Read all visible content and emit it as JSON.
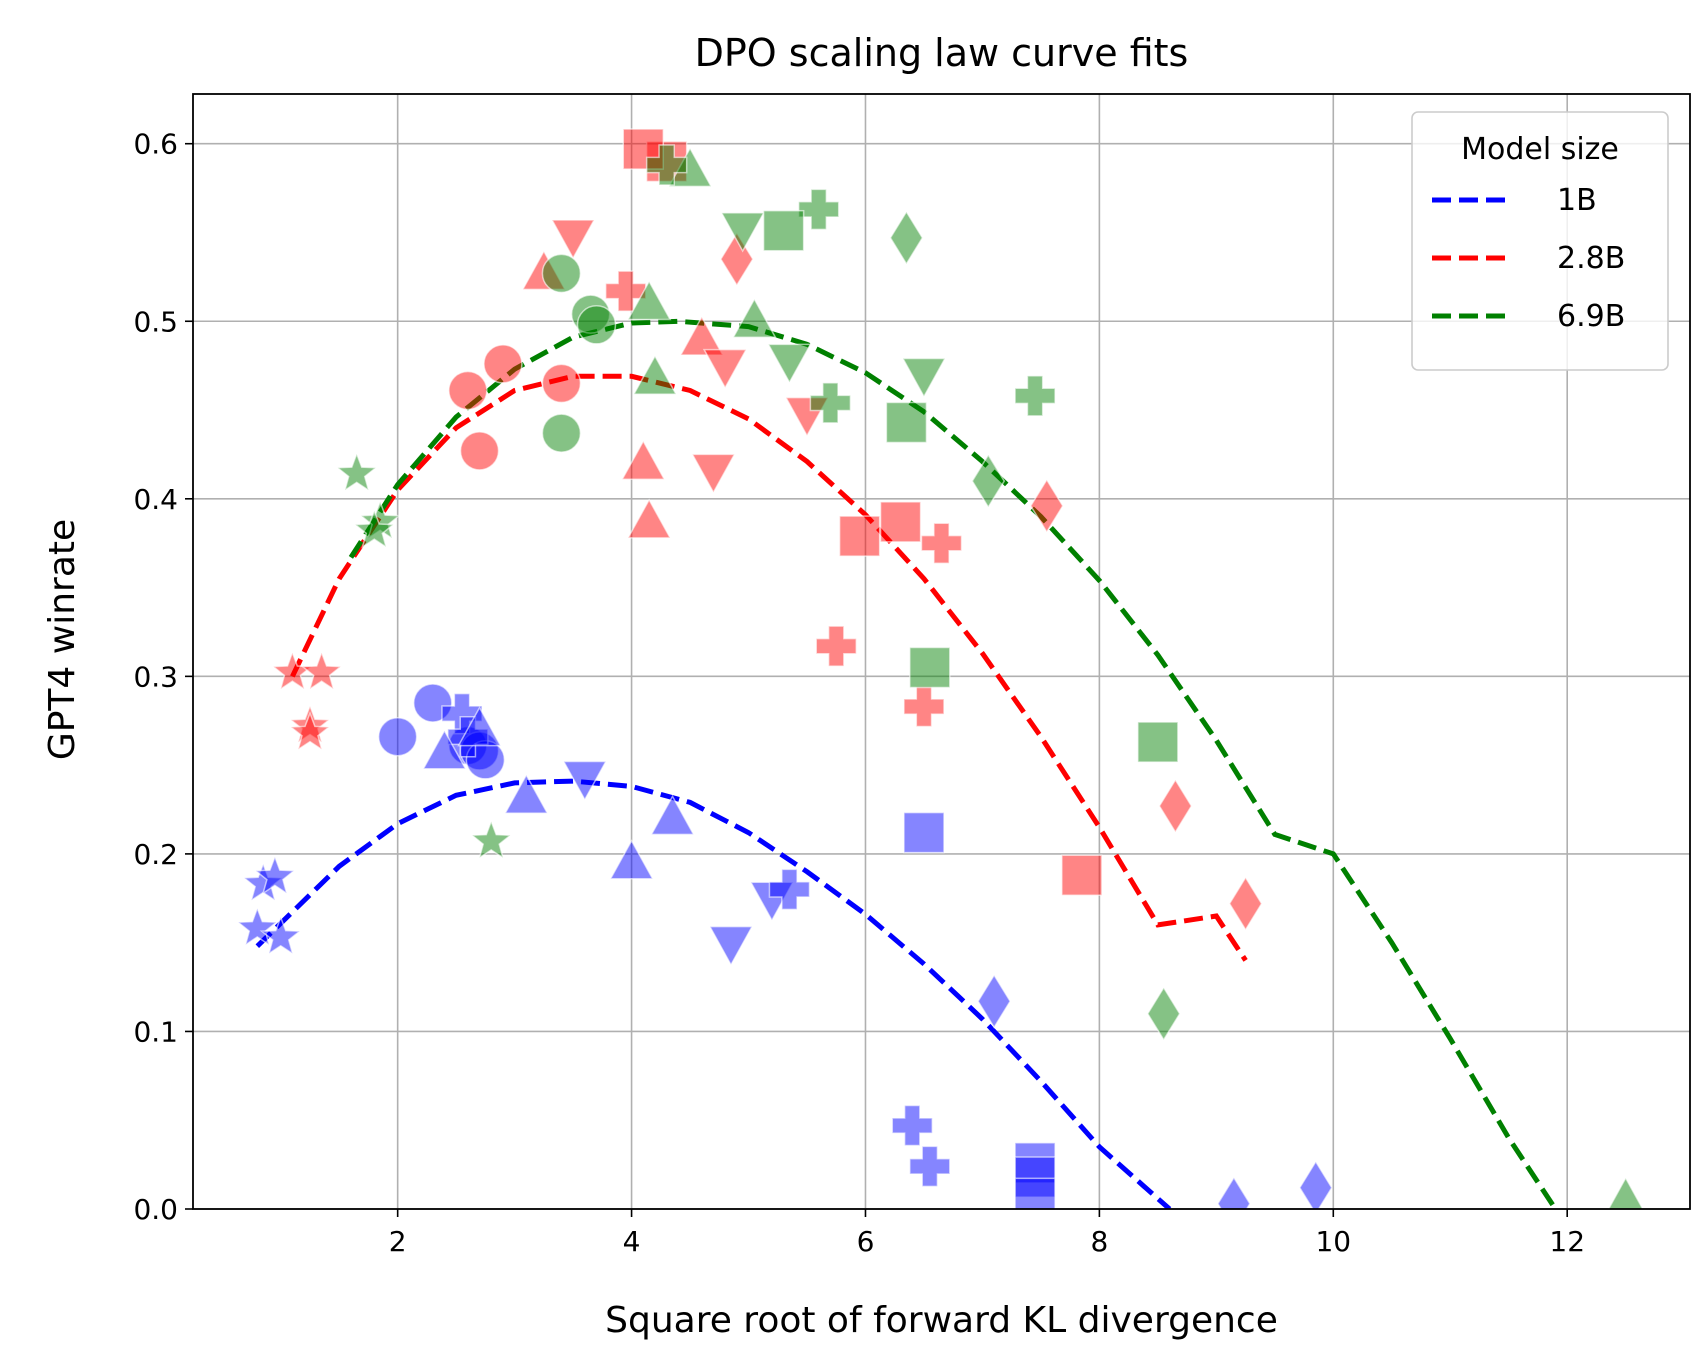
{
  "chart_data": {
    "type": "scatter",
    "title": "DPO scaling law curve fits",
    "xlabel": "Square root of forward KL divergence",
    "ylabel": "GPT4 winrate",
    "xlim": [
      0.25,
      13.05
    ],
    "ylim": [
      0.0,
      0.628
    ],
    "xticks": [
      2,
      4,
      6,
      8,
      10,
      12
    ],
    "xtick_labels": [
      "2",
      "4",
      "6",
      "8",
      "10",
      "12"
    ],
    "yticks": [
      0.0,
      0.1,
      0.2,
      0.3,
      0.4,
      0.5,
      0.6
    ],
    "ytick_labels": [
      "0.0",
      "0.1",
      "0.2",
      "0.3",
      "0.4",
      "0.5",
      "0.6"
    ],
    "grid": true,
    "legend": {
      "title": "Model size",
      "placement": "top-right",
      "entries": [
        "1B",
        "2.8B",
        "6.9B"
      ]
    },
    "colors": {
      "1B": "#0000ff",
      "2.8B": "#ff0000",
      "6.9B": "#008000"
    },
    "series": [
      {
        "name": "1B",
        "curve": {
          "style": "dashed",
          "x": [
            0.8,
            1.5,
            2.0,
            2.5,
            3.0,
            3.5,
            4.0,
            4.5,
            5.0,
            5.5,
            6.0,
            6.5,
            7.0,
            7.5,
            8.0,
            8.6
          ],
          "y": [
            0.148,
            0.193,
            0.217,
            0.233,
            0.24,
            0.241,
            0.238,
            0.229,
            0.212,
            0.19,
            0.166,
            0.138,
            0.107,
            0.072,
            0.035,
            0.0
          ]
        },
        "points": [
          {
            "x": 0.85,
            "y": 0.183,
            "marker": "star"
          },
          {
            "x": 0.95,
            "y": 0.187,
            "marker": "star"
          },
          {
            "x": 0.8,
            "y": 0.158,
            "marker": "star"
          },
          {
            "x": 1.0,
            "y": 0.153,
            "marker": "star"
          },
          {
            "x": 2.0,
            "y": 0.266,
            "marker": "circle"
          },
          {
            "x": 2.3,
            "y": 0.285,
            "marker": "circle"
          },
          {
            "x": 2.6,
            "y": 0.261,
            "marker": "circle"
          },
          {
            "x": 2.7,
            "y": 0.258,
            "marker": "circle"
          },
          {
            "x": 2.75,
            "y": 0.253,
            "marker": "circle"
          },
          {
            "x": 2.55,
            "y": 0.279,
            "marker": "plus"
          },
          {
            "x": 2.6,
            "y": 0.266,
            "marker": "plus"
          },
          {
            "x": 2.4,
            "y": 0.257,
            "marker": "triangle_up"
          },
          {
            "x": 2.7,
            "y": 0.27,
            "marker": "triangle_up"
          },
          {
            "x": 3.1,
            "y": 0.232,
            "marker": "triangle_up"
          },
          {
            "x": 4.0,
            "y": 0.195,
            "marker": "triangle_up"
          },
          {
            "x": 4.35,
            "y": 0.22,
            "marker": "triangle_up"
          },
          {
            "x": 3.6,
            "y": 0.243,
            "marker": "triangle_down"
          },
          {
            "x": 4.85,
            "y": 0.15,
            "marker": "triangle_down"
          },
          {
            "x": 5.2,
            "y": 0.175,
            "marker": "triangle_down"
          },
          {
            "x": 5.35,
            "y": 0.18,
            "marker": "plus"
          },
          {
            "x": 6.4,
            "y": 0.047,
            "marker": "plus"
          },
          {
            "x": 6.55,
            "y": 0.024,
            "marker": "plus"
          },
          {
            "x": 6.5,
            "y": 0.212,
            "marker": "square"
          },
          {
            "x": 7.45,
            "y": 0.026,
            "marker": "square"
          },
          {
            "x": 7.45,
            "y": 0.018,
            "marker": "square"
          },
          {
            "x": 7.45,
            "y": 0.006,
            "marker": "square"
          },
          {
            "x": 7.1,
            "y": 0.117,
            "marker": "diamond"
          },
          {
            "x": 9.15,
            "y": 0.003,
            "marker": "diamond"
          },
          {
            "x": 9.85,
            "y": 0.012,
            "marker": "diamond"
          }
        ]
      },
      {
        "name": "2.8B",
        "curve": {
          "style": "dashed",
          "x": [
            1.1,
            1.5,
            2.0,
            2.5,
            3.0,
            3.5,
            4.0,
            4.5,
            5.0,
            5.5,
            6.0,
            6.5,
            7.0,
            7.5,
            8.0,
            8.5,
            9.0,
            9.25
          ],
          "y": [
            0.3,
            0.355,
            0.405,
            0.44,
            0.461,
            0.469,
            0.469,
            0.461,
            0.445,
            0.421,
            0.391,
            0.355,
            0.313,
            0.266,
            0.215,
            0.16,
            0.165,
            0.14
          ]
        },
        "points": [
          {
            "x": 1.1,
            "y": 0.302,
            "marker": "star"
          },
          {
            "x": 1.35,
            "y": 0.302,
            "marker": "star"
          },
          {
            "x": 1.25,
            "y": 0.272,
            "marker": "star"
          },
          {
            "x": 1.25,
            "y": 0.268,
            "marker": "star"
          },
          {
            "x": 2.6,
            "y": 0.461,
            "marker": "circle"
          },
          {
            "x": 2.9,
            "y": 0.476,
            "marker": "circle"
          },
          {
            "x": 2.7,
            "y": 0.427,
            "marker": "circle"
          },
          {
            "x": 3.4,
            "y": 0.465,
            "marker": "circle"
          },
          {
            "x": 3.25,
            "y": 0.527,
            "marker": "triangle_up"
          },
          {
            "x": 4.1,
            "y": 0.42,
            "marker": "triangle_up"
          },
          {
            "x": 4.15,
            "y": 0.387,
            "marker": "triangle_up"
          },
          {
            "x": 4.6,
            "y": 0.49,
            "marker": "triangle_up"
          },
          {
            "x": 3.5,
            "y": 0.548,
            "marker": "triangle_down"
          },
          {
            "x": 4.7,
            "y": 0.416,
            "marker": "triangle_down"
          },
          {
            "x": 4.8,
            "y": 0.475,
            "marker": "triangle_down"
          },
          {
            "x": 5.5,
            "y": 0.448,
            "marker": "triangle_down"
          },
          {
            "x": 3.95,
            "y": 0.517,
            "marker": "plus"
          },
          {
            "x": 4.3,
            "y": 0.59,
            "marker": "square"
          },
          {
            "x": 4.1,
            "y": 0.597,
            "marker": "square"
          },
          {
            "x": 5.75,
            "y": 0.317,
            "marker": "plus"
          },
          {
            "x": 6.5,
            "y": 0.283,
            "marker": "plus"
          },
          {
            "x": 6.65,
            "y": 0.375,
            "marker": "plus"
          },
          {
            "x": 6.3,
            "y": 0.387,
            "marker": "square"
          },
          {
            "x": 5.95,
            "y": 0.379,
            "marker": "square"
          },
          {
            "x": 7.85,
            "y": 0.188,
            "marker": "square"
          },
          {
            "x": 4.9,
            "y": 0.535,
            "marker": "diamond"
          },
          {
            "x": 7.55,
            "y": 0.396,
            "marker": "diamond"
          },
          {
            "x": 8.65,
            "y": 0.227,
            "marker": "diamond"
          },
          {
            "x": 9.25,
            "y": 0.172,
            "marker": "diamond"
          }
        ]
      },
      {
        "name": "6.9B",
        "curve": {
          "style": "dashed",
          "x": [
            1.6,
            2.0,
            2.5,
            3.0,
            3.5,
            4.0,
            4.4,
            5.0,
            5.5,
            6.0,
            6.5,
            7.0,
            7.5,
            8.0,
            8.5,
            9.0,
            9.5,
            10.0,
            10.5,
            11.0,
            11.5,
            11.9
          ],
          "y": [
            0.367,
            0.408,
            0.446,
            0.473,
            0.491,
            0.499,
            0.5,
            0.497,
            0.487,
            0.471,
            0.449,
            0.421,
            0.39,
            0.354,
            0.312,
            0.264,
            0.211,
            0.2,
            0.15,
            0.096,
            0.04,
            0.0
          ]
        },
        "points": [
          {
            "x": 1.65,
            "y": 0.414,
            "marker": "star"
          },
          {
            "x": 1.85,
            "y": 0.387,
            "marker": "star"
          },
          {
            "x": 1.8,
            "y": 0.382,
            "marker": "star"
          },
          {
            "x": 2.8,
            "y": 0.207,
            "marker": "star"
          },
          {
            "x": 3.4,
            "y": 0.527,
            "marker": "circle"
          },
          {
            "x": 3.65,
            "y": 0.504,
            "marker": "circle"
          },
          {
            "x": 3.7,
            "y": 0.498,
            "marker": "circle"
          },
          {
            "x": 3.4,
            "y": 0.437,
            "marker": "circle"
          },
          {
            "x": 4.15,
            "y": 0.51,
            "marker": "triangle_up"
          },
          {
            "x": 4.2,
            "y": 0.468,
            "marker": "triangle_up"
          },
          {
            "x": 4.5,
            "y": 0.585,
            "marker": "triangle_up"
          },
          {
            "x": 5.05,
            "y": 0.5,
            "marker": "triangle_up"
          },
          {
            "x": 4.95,
            "y": 0.552,
            "marker": "triangle_down"
          },
          {
            "x": 5.35,
            "y": 0.478,
            "marker": "triangle_down"
          },
          {
            "x": 6.5,
            "y": 0.47,
            "marker": "triangle_down"
          },
          {
            "x": 4.3,
            "y": 0.588,
            "marker": "plus"
          },
          {
            "x": 5.6,
            "y": 0.563,
            "marker": "plus"
          },
          {
            "x": 5.7,
            "y": 0.454,
            "marker": "plus"
          },
          {
            "x": 7.45,
            "y": 0.458,
            "marker": "plus"
          },
          {
            "x": 5.3,
            "y": 0.551,
            "marker": "square"
          },
          {
            "x": 6.35,
            "y": 0.443,
            "marker": "square"
          },
          {
            "x": 6.55,
            "y": 0.305,
            "marker": "square"
          },
          {
            "x": 8.5,
            "y": 0.263,
            "marker": "square"
          },
          {
            "x": 6.35,
            "y": 0.547,
            "marker": "diamond"
          },
          {
            "x": 7.05,
            "y": 0.41,
            "marker": "diamond"
          },
          {
            "x": 8.55,
            "y": 0.11,
            "marker": "diamond"
          },
          {
            "x": 12.5,
            "y": 0.005,
            "marker": "triangle_up"
          }
        ]
      }
    ]
  }
}
